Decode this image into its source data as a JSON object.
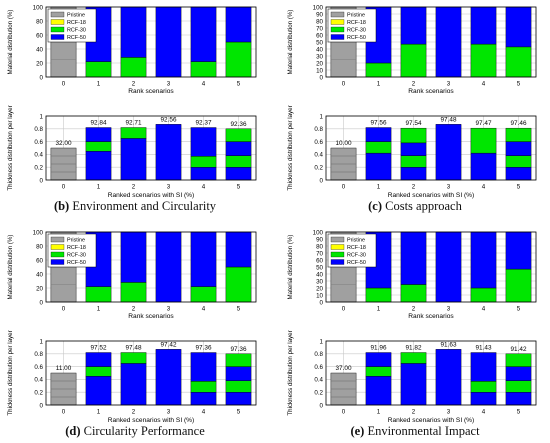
{
  "colors": {
    "pristine": "#a0a0a0",
    "rcf18": "#ffff00",
    "rcf30": "#00e600",
    "rcf50": "#0000ff",
    "grid": "#c8c8c8"
  },
  "labels": {
    "legend": [
      "Pristine",
      "RCF-18",
      "RCF-30",
      "RCF-50"
    ],
    "top_ylabel": "Material distribution (%)",
    "top_xlabel": "Rank scenarios",
    "bottom_ylabel": "Thickness distribution per layer",
    "bottom_xlabel": "Ranked scenarios with SI (%)"
  },
  "captions": [
    {
      "letter": "(b)",
      "text": "Environment and Circularity"
    },
    {
      "letter": "(c)",
      "text": "Costs approach"
    },
    {
      "letter": "(d)",
      "text": "Circularity Performance"
    },
    {
      "letter": "(e)",
      "text": "Environmental Impact"
    }
  ],
  "chart_data": [
    {
      "type": "bar",
      "panel": "b",
      "categories": [
        "0",
        "1",
        "2",
        "3",
        "4",
        "5"
      ],
      "material": {
        "ylim": [
          0,
          100
        ],
        "yticks": [
          0,
          20,
          40,
          60,
          80,
          100
        ],
        "series": [
          {
            "name": "Pristine",
            "values": [
              100,
              0,
              0,
              0,
              0,
              0
            ]
          },
          {
            "name": "RCF-18",
            "values": [
              0,
              0,
              0,
              0,
              0,
              0
            ]
          },
          {
            "name": "RCF-30",
            "values": [
              0,
              22,
              28,
              0,
              22,
              50
            ]
          },
          {
            "name": "RCF-50",
            "values": [
              0,
              78,
              72,
              100,
              78,
              50
            ]
          }
        ]
      },
      "thickness": {
        "ylim": [
          0,
          1
        ],
        "yticks": [
          0,
          0.2,
          0.4,
          0.6,
          0.8,
          1
        ],
        "total": [
          0.5,
          0.82,
          0.82,
          0.87,
          0.82,
          0.8
        ],
        "si_labels": [
          "32.00",
          "92.84",
          "92.71",
          "92.56",
          "92.37",
          "92.36"
        ],
        "layers": [
          [
            {
              "v": 0.5,
              "m": "pristine"
            }
          ],
          [
            {
              "v": 0.45,
              "m": "rcf50"
            },
            {
              "v": 0.15,
              "m": "rcf30"
            },
            {
              "v": 0.22,
              "m": "rcf50"
            }
          ],
          [
            {
              "v": 0.65,
              "m": "rcf50"
            },
            {
              "v": 0.17,
              "m": "rcf30"
            }
          ],
          [
            {
              "v": 0.87,
              "m": "rcf50"
            }
          ],
          [
            {
              "v": 0.2,
              "m": "rcf50"
            },
            {
              "v": 0.17,
              "m": "rcf30"
            },
            {
              "v": 0.45,
              "m": "rcf50"
            }
          ],
          [
            {
              "v": 0.2,
              "m": "rcf50"
            },
            {
              "v": 0.18,
              "m": "rcf30"
            },
            {
              "v": 0.22,
              "m": "rcf50"
            },
            {
              "v": 0.2,
              "m": "rcf30"
            }
          ]
        ]
      }
    },
    {
      "type": "bar",
      "panel": "c",
      "categories": [
        "0",
        "1",
        "2",
        "3",
        "4",
        "5"
      ],
      "material": {
        "ylim": [
          0,
          100
        ],
        "yticks": [
          0,
          10,
          20,
          30,
          40,
          50,
          60,
          70,
          80,
          90,
          100
        ],
        "series": [
          {
            "name": "Pristine",
            "values": [
              100,
              0,
              0,
              0,
              0,
              0
            ]
          },
          {
            "name": "RCF-18",
            "values": [
              0,
              0,
              0,
              0,
              0,
              0
            ]
          },
          {
            "name": "RCF-30",
            "values": [
              0,
              20,
              47,
              0,
              47,
              43
            ]
          },
          {
            "name": "RCF-50",
            "values": [
              0,
              80,
              53,
              100,
              53,
              57
            ]
          }
        ]
      },
      "thickness": {
        "ylim": [
          0,
          1
        ],
        "yticks": [
          0,
          0.2,
          0.4,
          0.6,
          0.8,
          1
        ],
        "total": [
          0.5,
          0.82,
          0.81,
          0.87,
          0.81,
          0.81
        ],
        "si_labels": [
          "10.00",
          "97.56",
          "97.54",
          "97.48",
          "97.47",
          "97.46"
        ],
        "layers": [
          [
            {
              "v": 0.5,
              "m": "pristine"
            }
          ],
          [
            {
              "v": 0.42,
              "m": "rcf50"
            },
            {
              "v": 0.18,
              "m": "rcf30"
            },
            {
              "v": 0.22,
              "m": "rcf50"
            }
          ],
          [
            {
              "v": 0.2,
              "m": "rcf50"
            },
            {
              "v": 0.18,
              "m": "rcf30"
            },
            {
              "v": 0.2,
              "m": "rcf50"
            },
            {
              "v": 0.23,
              "m": "rcf30"
            }
          ],
          [
            {
              "v": 0.87,
              "m": "rcf50"
            }
          ],
          [
            {
              "v": 0.42,
              "m": "rcf50"
            },
            {
              "v": 0.39,
              "m": "rcf30"
            }
          ],
          [
            {
              "v": 0.2,
              "m": "rcf50"
            },
            {
              "v": 0.18,
              "m": "rcf30"
            },
            {
              "v": 0.22,
              "m": "rcf50"
            },
            {
              "v": 0.21,
              "m": "rcf30"
            }
          ]
        ]
      }
    },
    {
      "type": "bar",
      "panel": "d",
      "categories": [
        "0",
        "1",
        "2",
        "3",
        "4",
        "5"
      ],
      "material": {
        "ylim": [
          0,
          100
        ],
        "yticks": [
          0,
          20,
          40,
          60,
          80,
          100
        ],
        "series": [
          {
            "name": "Pristine",
            "values": [
              100,
              0,
              0,
              0,
              0,
              0
            ]
          },
          {
            "name": "RCF-18",
            "values": [
              0,
              0,
              0,
              0,
              0,
              0
            ]
          },
          {
            "name": "RCF-30",
            "values": [
              0,
              22,
              28,
              0,
              22,
              50
            ]
          },
          {
            "name": "RCF-50",
            "values": [
              0,
              78,
              72,
              100,
              78,
              50
            ]
          }
        ]
      },
      "thickness": {
        "ylim": [
          0,
          1
        ],
        "yticks": [
          0,
          0.2,
          0.4,
          0.6,
          0.8,
          1
        ],
        "total": [
          0.5,
          0.82,
          0.82,
          0.87,
          0.82,
          0.8
        ],
        "si_labels": [
          "11.00",
          "97.52",
          "97.48",
          "97.42",
          "97.36",
          "97.36"
        ],
        "layers": [
          [
            {
              "v": 0.5,
              "m": "pristine"
            }
          ],
          [
            {
              "v": 0.45,
              "m": "rcf50"
            },
            {
              "v": 0.15,
              "m": "rcf30"
            },
            {
              "v": 0.22,
              "m": "rcf50"
            }
          ],
          [
            {
              "v": 0.65,
              "m": "rcf50"
            },
            {
              "v": 0.17,
              "m": "rcf30"
            }
          ],
          [
            {
              "v": 0.87,
              "m": "rcf50"
            }
          ],
          [
            {
              "v": 0.2,
              "m": "rcf50"
            },
            {
              "v": 0.17,
              "m": "rcf30"
            },
            {
              "v": 0.45,
              "m": "rcf50"
            }
          ],
          [
            {
              "v": 0.2,
              "m": "rcf50"
            },
            {
              "v": 0.18,
              "m": "rcf30"
            },
            {
              "v": 0.22,
              "m": "rcf50"
            },
            {
              "v": 0.2,
              "m": "rcf30"
            }
          ]
        ]
      }
    },
    {
      "type": "bar",
      "panel": "e",
      "categories": [
        "0",
        "1",
        "2",
        "3",
        "4",
        "5"
      ],
      "material": {
        "ylim": [
          0,
          100
        ],
        "yticks": [
          0,
          10,
          20,
          30,
          40,
          50,
          60,
          70,
          80,
          90,
          100
        ],
        "series": [
          {
            "name": "Pristine",
            "values": [
              100,
              0,
              0,
              0,
              0,
              0
            ]
          },
          {
            "name": "RCF-18",
            "values": [
              0,
              0,
              0,
              0,
              0,
              0
            ]
          },
          {
            "name": "RCF-30",
            "values": [
              0,
              20,
              25,
              0,
              20,
              47
            ]
          },
          {
            "name": "RCF-50",
            "values": [
              0,
              80,
              75,
              100,
              80,
              53
            ]
          }
        ]
      },
      "thickness": {
        "ylim": [
          0,
          1
        ],
        "yticks": [
          0,
          0.2,
          0.4,
          0.6,
          0.8,
          1
        ],
        "total": [
          0.5,
          0.82,
          0.82,
          0.87,
          0.82,
          0.8
        ],
        "si_labels": [
          "37.00",
          "91.96",
          "91.82",
          "91.63",
          "91.43",
          "91.42"
        ],
        "layers": [
          [
            {
              "v": 0.5,
              "m": "pristine"
            }
          ],
          [
            {
              "v": 0.45,
              "m": "rcf50"
            },
            {
              "v": 0.15,
              "m": "rcf30"
            },
            {
              "v": 0.22,
              "m": "rcf50"
            }
          ],
          [
            {
              "v": 0.65,
              "m": "rcf50"
            },
            {
              "v": 0.17,
              "m": "rcf30"
            }
          ],
          [
            {
              "v": 0.87,
              "m": "rcf50"
            }
          ],
          [
            {
              "v": 0.2,
              "m": "rcf50"
            },
            {
              "v": 0.17,
              "m": "rcf30"
            },
            {
              "v": 0.45,
              "m": "rcf50"
            }
          ],
          [
            {
              "v": 0.2,
              "m": "rcf50"
            },
            {
              "v": 0.18,
              "m": "rcf30"
            },
            {
              "v": 0.22,
              "m": "rcf50"
            },
            {
              "v": 0.2,
              "m": "rcf30"
            }
          ]
        ]
      }
    }
  ]
}
